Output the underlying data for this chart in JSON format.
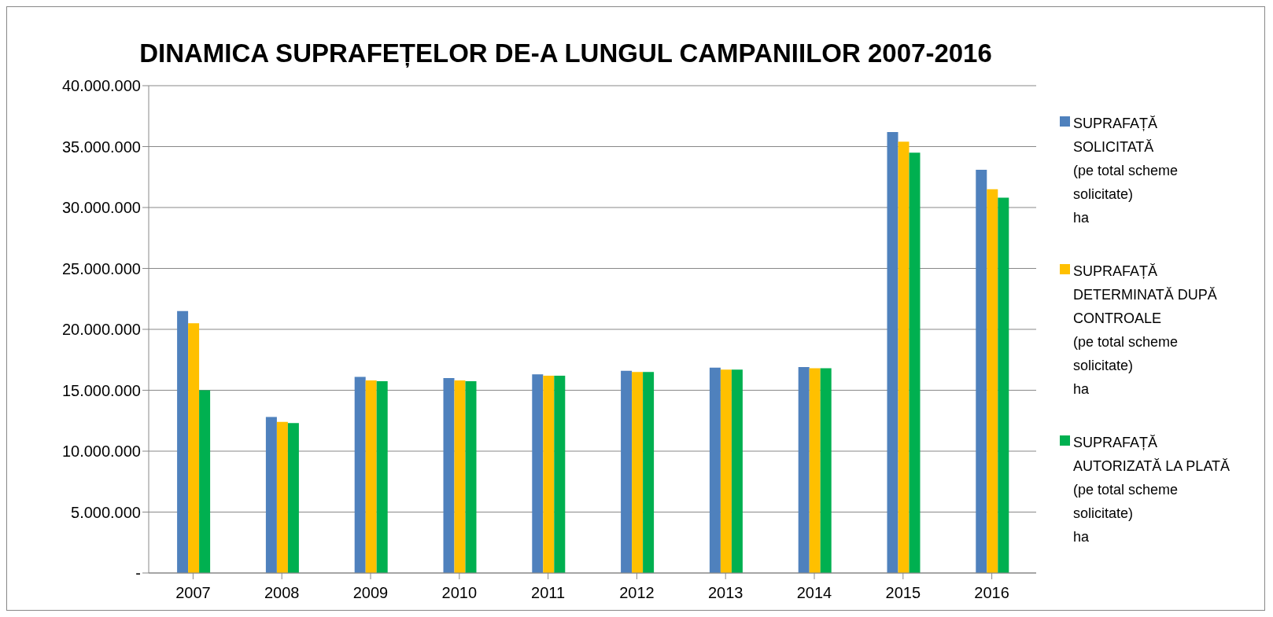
{
  "chart_data": {
    "type": "bar",
    "title": "DINAMICA SUPRAFEȚELOR DE-A LUNGUL CAMPANIILOR 2007-2016",
    "categories": [
      "2007",
      "2008",
      "2009",
      "2010",
      "2011",
      "2012",
      "2013",
      "2014",
      "2015",
      "2016"
    ],
    "series": [
      {
        "name": "SUPRAFAȚĂ\nSOLICITATĂ\n(pe total scheme\nsolicitate)\n ha",
        "color": "#4f81bd",
        "values": [
          21500000,
          12800000,
          16100000,
          16000000,
          16300000,
          16600000,
          16850000,
          16900000,
          36200000,
          33100000
        ]
      },
      {
        "name": "SUPRAFAȚĂ\nDETERMINATĂ DUPĂ\nCONTROALE\n(pe total scheme\nsolicitate)\n ha",
        "color": "#ffc000",
        "values": [
          20500000,
          12400000,
          15800000,
          15800000,
          16200000,
          16500000,
          16700000,
          16800000,
          35400000,
          31500000
        ]
      },
      {
        "name": "SUPRAFAȚĂ\nAUTORIZATĂ LA PLATĂ\n(pe total scheme\nsolicitate)\n ha",
        "color": "#00b050",
        "values": [
          15000000,
          12300000,
          15750000,
          15750000,
          16200000,
          16500000,
          16700000,
          16800000,
          34500000,
          30800000
        ]
      }
    ],
    "ylim": [
      0,
      40000000
    ],
    "yticks": [
      {
        "value": 0,
        "label": "-"
      },
      {
        "value": 5000000,
        "label": "5.000.000"
      },
      {
        "value": 10000000,
        "label": "10.000.000"
      },
      {
        "value": 15000000,
        "label": "15.000.000"
      },
      {
        "value": 20000000,
        "label": "20.000.000"
      },
      {
        "value": 25000000,
        "label": "25.000.000"
      },
      {
        "value": 30000000,
        "label": "30.000.000"
      },
      {
        "value": 35000000,
        "label": "35.000.000"
      },
      {
        "value": 40000000,
        "label": "40.000.000"
      }
    ],
    "grid": "y",
    "legend": "right"
  }
}
